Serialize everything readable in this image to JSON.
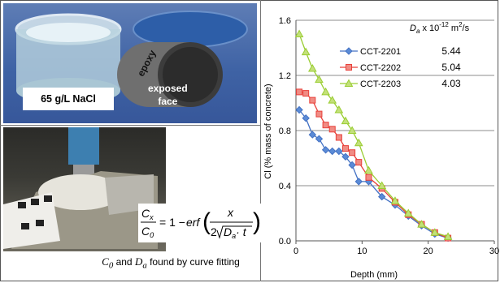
{
  "photos": {
    "top_labels": {
      "solution": "65 g/L NaCl",
      "coating": "epoxy",
      "face_line1": "exposed",
      "face_line2": "face"
    }
  },
  "equation": {
    "lhs_num": "C",
    "lhs_num_sub": "x",
    "lhs_den": "C",
    "lhs_den_sub": "0",
    "rhs_prefix": "= 1 − ",
    "func": "erf",
    "arg_num": "x",
    "arg_den_coef": "2",
    "arg_den_var": "D",
    "arg_den_sub": "a",
    "arg_den_t": "· t"
  },
  "caption": {
    "c0": "C",
    "c0_sub": "0",
    "mid": " and ",
    "da": "D",
    "da_sub": "a",
    "rest": " found by curve fitting"
  },
  "colors": {
    "s1": "#4472c4",
    "s2": "#e8403a",
    "s3": "#9acd32"
  },
  "chart_data": {
    "type": "line",
    "xlabel": "Depth (mm)",
    "ylabel": "Cl (% mass of concrete)",
    "xlim": [
      0,
      30
    ],
    "ylim": [
      0,
      1.6
    ],
    "xticks": [
      "0",
      "10",
      "20",
      "30"
    ],
    "yticks": [
      "0.0",
      "0.4",
      "0.8",
      "1.2",
      "1.6"
    ],
    "grid": "horizontal",
    "legend_placement": "top-right",
    "legend_header": {
      "symbol": "D",
      "sub": "a",
      "rest": " x 10",
      "exp": "-12",
      "unit": " m",
      "unit_exp": "2",
      "tail": "/s"
    },
    "series": [
      {
        "name": "CCT-2201",
        "da": "5.44",
        "marker": "diamond",
        "x": [
          0.5,
          1.5,
          2.5,
          3.5,
          4.5,
          5.5,
          6.5,
          7.5,
          8.5,
          9.5,
          11,
          13,
          15,
          17,
          19,
          21,
          23
        ],
        "y": [
          0.95,
          0.89,
          0.77,
          0.74,
          0.66,
          0.65,
          0.65,
          0.61,
          0.55,
          0.43,
          0.43,
          0.32,
          0.26,
          0.18,
          0.11,
          0.05,
          0.02
        ]
      },
      {
        "name": "CCT-2202",
        "da": "5.04",
        "marker": "square",
        "x": [
          0.5,
          1.5,
          2.5,
          3.5,
          4.5,
          5.5,
          6.5,
          7.5,
          8.5,
          9.5,
          11,
          13,
          15,
          17,
          19,
          21,
          23
        ],
        "y": [
          1.08,
          1.07,
          1.02,
          0.92,
          0.84,
          0.81,
          0.75,
          0.67,
          0.64,
          0.57,
          0.46,
          0.38,
          0.28,
          0.19,
          0.12,
          0.06,
          0.02
        ]
      },
      {
        "name": "CCT-2203",
        "da": "4.03",
        "marker": "triangle",
        "x": [
          0.5,
          1.5,
          2.5,
          3.5,
          4.5,
          5.5,
          6.5,
          7.5,
          8.5,
          9.5,
          11,
          13,
          15,
          17,
          19,
          21,
          23
        ],
        "y": [
          1.5,
          1.37,
          1.25,
          1.17,
          1.08,
          1.02,
          0.95,
          0.87,
          0.8,
          0.71,
          0.51,
          0.4,
          0.29,
          0.2,
          0.12,
          0.06,
          0.03
        ]
      }
    ]
  }
}
